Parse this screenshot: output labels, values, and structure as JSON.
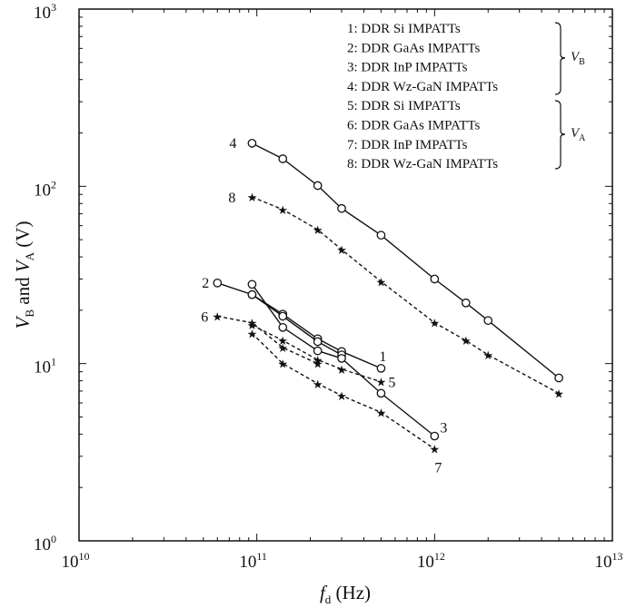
{
  "chart_data": {
    "type": "line",
    "xlabel": {
      "main": "f",
      "sub": "d",
      "unit": " (Hz)"
    },
    "ylabel": {
      "a": "V",
      "a_sub": "B",
      "mid": " and ",
      "b": "V",
      "b_sub": "A",
      "unit": " (V)"
    },
    "xscale": "log",
    "yscale": "log",
    "xlim": [
      10000000000.0,
      10000000000000.0
    ],
    "ylim": [
      1,
      1000
    ],
    "x_ticks": [
      {
        "value": 10000000000.0,
        "base": "10",
        "exp": "10"
      },
      {
        "value": 100000000000.0,
        "base": "10",
        "exp": "11"
      },
      {
        "value": 1000000000000.0,
        "base": "10",
        "exp": "12"
      },
      {
        "value": 10000000000000.0,
        "base": "10",
        "exp": "13"
      }
    ],
    "y_ticks": [
      {
        "value": 1,
        "base": "10",
        "exp": "0"
      },
      {
        "value": 10,
        "base": "10",
        "exp": "1"
      },
      {
        "value": 100,
        "base": "10",
        "exp": "2"
      },
      {
        "value": 1000,
        "base": "10",
        "exp": "3"
      }
    ],
    "grid": false,
    "legend": {
      "placement": "top-right",
      "entries": [
        "1: DDR Si IMPATTs",
        "2: DDR GaAs IMPATTs",
        "3: DDR InP IMPATTs",
        "4: DDR Wz-GaN IMPATTs",
        "5: DDR Si IMPATTs",
        "6: DDR GaAs IMPATTs",
        "7: DDR InP IMPATTs",
        "8: DDR Wz-GaN IMPATTs"
      ],
      "groups": [
        {
          "symbol": "V",
          "sub": "B",
          "entries": [
            1,
            2,
            3,
            4
          ]
        },
        {
          "symbol": "V",
          "sub": "A",
          "entries": [
            5,
            6,
            7,
            8
          ]
        }
      ]
    },
    "series": [
      {
        "id": 1,
        "label": "1",
        "marker": "circle",
        "dash": "solid",
        "x": [
          94000000000.0,
          140000000000.0,
          220000000000.0,
          300000000000.0,
          500000000000.0
        ],
        "y": [
          24.5,
          19,
          13.8,
          11.7,
          9.4
        ]
      },
      {
        "id": 2,
        "label": "2",
        "marker": "circle",
        "dash": "solid",
        "x": [
          60000000000.0,
          94000000000.0,
          140000000000.0,
          220000000000.0,
          300000000000.0
        ],
        "y": [
          28.5,
          24.5,
          18.5,
          13.3,
          11.2
        ]
      },
      {
        "id": 3,
        "label": "3",
        "marker": "circle",
        "dash": "solid",
        "x": [
          94000000000.0,
          140000000000.0,
          220000000000.0,
          300000000000.0,
          500000000000.0,
          1000000000000.0
        ],
        "y": [
          28,
          16,
          11.8,
          10.7,
          6.8,
          3.9
        ]
      },
      {
        "id": 4,
        "label": "4",
        "marker": "circle",
        "dash": "solid",
        "x": [
          94000000000.0,
          140000000000.0,
          220000000000.0,
          300000000000.0,
          500000000000.0,
          1000000000000.0,
          1500000000000.0,
          2000000000000.0,
          5000000000000.0
        ],
        "y": [
          175,
          143,
          101,
          75,
          53,
          30,
          22,
          17.5,
          8.3
        ]
      },
      {
        "id": 5,
        "label": "5",
        "marker": "star",
        "dash": "dashed",
        "x": [
          94000000000.0,
          140000000000.0,
          220000000000.0,
          300000000000.0,
          500000000000.0
        ],
        "y": [
          16.5,
          13.5,
          10.5,
          9.3,
          7.9
        ]
      },
      {
        "id": 6,
        "label": "6",
        "marker": "star",
        "dash": "dashed",
        "x": [
          60000000000.0,
          94000000000.0,
          140000000000.0,
          220000000000.0
        ],
        "y": [
          18.5,
          17,
          12.3,
          10
        ]
      },
      {
        "id": 7,
        "label": "7",
        "marker": "star",
        "dash": "dashed",
        "x": [
          94000000000.0,
          140000000000.0,
          220000000000.0,
          300000000000.0,
          500000000000.0,
          1000000000000.0
        ],
        "y": [
          14.8,
          10,
          7.7,
          6.6,
          5.3,
          3.3
        ]
      },
      {
        "id": 8,
        "label": "8",
        "marker": "star",
        "dash": "dashed",
        "x": [
          94000000000.0,
          140000000000.0,
          220000000000.0,
          300000000000.0,
          500000000000.0,
          1000000000000.0,
          1500000000000.0,
          2000000000000.0,
          5000000000000.0
        ],
        "y": [
          87,
          74,
          57,
          44,
          29,
          17,
          13.5,
          11.2,
          6.8
        ]
      }
    ]
  }
}
